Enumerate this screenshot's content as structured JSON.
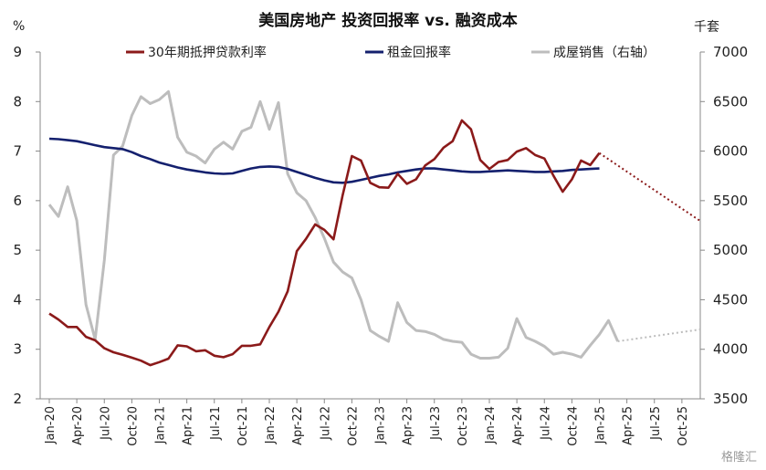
{
  "chart_data": {
    "type": "line",
    "title": "美国房地产 投资回报率 vs. 融资成本",
    "y_left_unit": "%",
    "y_right_unit": "千套",
    "ylim_left": [
      2,
      9
    ],
    "ylim_right": [
      3500,
      7000
    ],
    "yticks_left": [
      "2",
      "3",
      "4",
      "5",
      "6",
      "7",
      "8",
      "9"
    ],
    "yticks_right": [
      "3500",
      "4000",
      "4500",
      "5000",
      "5500",
      "6000",
      "6500",
      "7000"
    ],
    "x_ticks": [
      "Jan-20",
      "Apr-20",
      "Jul-20",
      "Oct-20",
      "Jan-21",
      "Apr-21",
      "Jul-21",
      "Oct-21",
      "Jan-22",
      "Apr-22",
      "Jul-22",
      "Oct-22",
      "Jan-23",
      "Apr-23",
      "Jul-23",
      "Oct-23",
      "Jan-24",
      "Apr-24",
      "Jul-24",
      "Oct-24",
      "Jan-25",
      "Apr-25",
      "Jul-25",
      "Oct-25"
    ],
    "x_start": "2020-01",
    "series": [
      {
        "name": "30年期抵押贷款利率",
        "axis": "left",
        "color": "#8b1a1a",
        "values": [
          3.72,
          3.6,
          3.45,
          3.45,
          3.25,
          3.18,
          3.02,
          2.94,
          2.89,
          2.83,
          2.77,
          2.68,
          2.74,
          2.81,
          3.08,
          3.06,
          2.96,
          2.98,
          2.87,
          2.84,
          2.9,
          3.07,
          3.07,
          3.1,
          3.45,
          3.76,
          4.17,
          4.98,
          5.23,
          5.52,
          5.41,
          5.22,
          6.11,
          6.9,
          6.81,
          6.36,
          6.27,
          6.26,
          6.54,
          6.34,
          6.43,
          6.71,
          6.84,
          7.07,
          7.2,
          7.62,
          7.44,
          6.82,
          6.64,
          6.78,
          6.82,
          6.99,
          7.06,
          6.92,
          6.85,
          6.5,
          6.18,
          6.43,
          6.81,
          6.72,
          6.96
        ],
        "projection_to": {
          "x": "2025-12",
          "y": 5.59
        }
      },
      {
        "name": "租金回报率",
        "axis": "left",
        "color": "#14206e",
        "values": [
          7.25,
          7.24,
          7.22,
          7.2,
          7.16,
          7.12,
          7.08,
          7.06,
          7.04,
          6.98,
          6.9,
          6.84,
          6.77,
          6.72,
          6.67,
          6.63,
          6.6,
          6.57,
          6.55,
          6.54,
          6.55,
          6.6,
          6.65,
          6.68,
          6.69,
          6.68,
          6.64,
          6.58,
          6.52,
          6.46,
          6.41,
          6.37,
          6.36,
          6.38,
          6.42,
          6.46,
          6.5,
          6.53,
          6.57,
          6.6,
          6.63,
          6.65,
          6.65,
          6.63,
          6.61,
          6.59,
          6.58,
          6.58,
          6.59,
          6.6,
          6.61,
          6.6,
          6.59,
          6.58,
          6.58,
          6.59,
          6.6,
          6.62,
          6.63,
          6.64,
          6.65
        ]
      },
      {
        "name": "成屋销售（右轴）",
        "axis": "right",
        "color": "#bdbdbd",
        "values": [
          5460,
          5340,
          5640,
          5300,
          4450,
          4100,
          4900,
          5960,
          6050,
          6360,
          6550,
          6480,
          6520,
          6600,
          6140,
          5990,
          5950,
          5880,
          6020,
          6090,
          6020,
          6200,
          6240,
          6500,
          6220,
          6490,
          5770,
          5580,
          5500,
          5330,
          5120,
          4880,
          4780,
          4720,
          4500,
          4190,
          4130,
          4080,
          4470,
          4270,
          4190,
          4180,
          4150,
          4100,
          4080,
          4070,
          3950,
          3910,
          3910,
          3920,
          4010,
          4310,
          4120,
          4080,
          4030,
          3950,
          3970,
          3950,
          3920,
          4040,
          4150,
          4290,
          4080
        ],
        "projection_to": {
          "x": "2025-12",
          "y": 4200
        }
      }
    ],
    "grid": false,
    "legend_position": "top"
  },
  "watermark": "格隆汇"
}
